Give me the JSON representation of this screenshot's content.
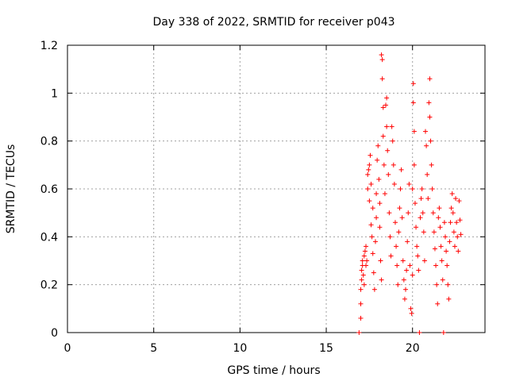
{
  "chart_data": {
    "type": "scatter",
    "title": "Day 338 of 2022, SRMTID for receiver p043",
    "xlabel": "GPS time / hours",
    "ylabel": "SRMTID / TECUs",
    "xlim": [
      0,
      24.2
    ],
    "ylim": [
      0,
      1.2
    ],
    "xticks": [
      0,
      5,
      10,
      15,
      20
    ],
    "yticks": [
      0,
      0.2,
      0.4,
      0.6,
      0.8,
      1,
      1.2
    ],
    "xtick_labels": [
      "0",
      "5",
      "10",
      "15",
      "20"
    ],
    "ytick_labels": [
      "0",
      "0.2",
      "0.4",
      "0.6",
      "0.8",
      "1",
      "1.2"
    ],
    "grid": true,
    "marker": "+",
    "series": [
      {
        "name": "SRMTID",
        "color": "#ff0000",
        "x_range": [
          16.9,
          22.8
        ],
        "points": [
          [
            16.9,
            0.0
          ],
          [
            17.0,
            0.06
          ],
          [
            17.0,
            0.12
          ],
          [
            17.0,
            0.18
          ],
          [
            17.05,
            0.22
          ],
          [
            17.05,
            0.26
          ],
          [
            17.1,
            0.28
          ],
          [
            17.1,
            0.3
          ],
          [
            17.15,
            0.24
          ],
          [
            17.2,
            0.32
          ],
          [
            17.2,
            0.2
          ],
          [
            17.25,
            0.34
          ],
          [
            17.3,
            0.28
          ],
          [
            17.3,
            0.36
          ],
          [
            17.35,
            0.3
          ],
          [
            17.4,
            0.6
          ],
          [
            17.4,
            0.66
          ],
          [
            17.45,
            0.68
          ],
          [
            17.5,
            0.7
          ],
          [
            17.5,
            0.55
          ],
          [
            17.55,
            0.74
          ],
          [
            17.6,
            0.62
          ],
          [
            17.6,
            0.45
          ],
          [
            17.65,
            0.4
          ],
          [
            17.7,
            0.52
          ],
          [
            17.7,
            0.33
          ],
          [
            17.75,
            0.25
          ],
          [
            17.8,
            0.18
          ],
          [
            17.85,
            0.38
          ],
          [
            17.9,
            0.48
          ],
          [
            17.9,
            0.58
          ],
          [
            17.95,
            0.72
          ],
          [
            18.0,
            0.78
          ],
          [
            18.05,
            0.64
          ],
          [
            18.1,
            0.54
          ],
          [
            18.1,
            0.44
          ],
          [
            18.15,
            0.3
          ],
          [
            18.2,
            0.22
          ],
          [
            18.2,
            1.16
          ],
          [
            18.25,
            1.14
          ],
          [
            18.25,
            1.06
          ],
          [
            18.3,
            0.94
          ],
          [
            18.3,
            0.82
          ],
          [
            18.35,
            0.7
          ],
          [
            18.4,
            0.58
          ],
          [
            18.45,
            0.95
          ],
          [
            18.5,
            0.98
          ],
          [
            18.5,
            0.86
          ],
          [
            18.55,
            0.76
          ],
          [
            18.6,
            0.66
          ],
          [
            18.65,
            0.5
          ],
          [
            18.7,
            0.4
          ],
          [
            18.75,
            0.32
          ],
          [
            18.8,
            0.86
          ],
          [
            18.85,
            0.8
          ],
          [
            18.9,
            0.7
          ],
          [
            18.95,
            0.62
          ],
          [
            19.0,
            0.46
          ],
          [
            19.05,
            0.36
          ],
          [
            19.1,
            0.28
          ],
          [
            19.15,
            0.2
          ],
          [
            19.2,
            0.42
          ],
          [
            19.25,
            0.52
          ],
          [
            19.3,
            0.6
          ],
          [
            19.35,
            0.68
          ],
          [
            19.4,
            0.48
          ],
          [
            19.45,
            0.3
          ],
          [
            19.5,
            0.22
          ],
          [
            19.55,
            0.14
          ],
          [
            19.6,
            0.18
          ],
          [
            19.65,
            0.26
          ],
          [
            19.7,
            0.38
          ],
          [
            19.75,
            0.5
          ],
          [
            19.8,
            0.62
          ],
          [
            19.85,
            0.28
          ],
          [
            19.9,
            0.1
          ],
          [
            19.95,
            0.08
          ],
          [
            20.0,
            0.24
          ],
          [
            20.0,
            0.6
          ],
          [
            20.05,
            0.96
          ],
          [
            20.05,
            1.04
          ],
          [
            20.1,
            0.84
          ],
          [
            20.1,
            0.7
          ],
          [
            20.15,
            0.54
          ],
          [
            20.2,
            0.44
          ],
          [
            20.25,
            0.36
          ],
          [
            20.3,
            0.32
          ],
          [
            20.35,
            0.26
          ],
          [
            20.4,
            0.0
          ],
          [
            20.45,
            0.48
          ],
          [
            20.5,
            0.56
          ],
          [
            20.55,
            0.6
          ],
          [
            20.6,
            0.5
          ],
          [
            20.65,
            0.42
          ],
          [
            20.7,
            0.3
          ],
          [
            20.75,
            0.84
          ],
          [
            20.8,
            0.78
          ],
          [
            20.85,
            0.66
          ],
          [
            20.9,
            0.56
          ],
          [
            20.95,
            0.96
          ],
          [
            21.0,
            1.06
          ],
          [
            21.0,
            0.9
          ],
          [
            21.05,
            0.8
          ],
          [
            21.1,
            0.7
          ],
          [
            21.15,
            0.6
          ],
          [
            21.2,
            0.5
          ],
          [
            21.25,
            0.42
          ],
          [
            21.3,
            0.35
          ],
          [
            21.35,
            0.28
          ],
          [
            21.4,
            0.2
          ],
          [
            21.45,
            0.12
          ],
          [
            21.5,
            0.48
          ],
          [
            21.55,
            0.52
          ],
          [
            21.6,
            0.44
          ],
          [
            21.65,
            0.36
          ],
          [
            21.7,
            0.3
          ],
          [
            21.75,
            0.22
          ],
          [
            21.8,
            0.0
          ],
          [
            21.85,
            0.46
          ],
          [
            21.9,
            0.4
          ],
          [
            21.95,
            0.34
          ],
          [
            22.0,
            0.28
          ],
          [
            22.05,
            0.2
          ],
          [
            22.1,
            0.14
          ],
          [
            22.15,
            0.38
          ],
          [
            22.2,
            0.46
          ],
          [
            22.25,
            0.52
          ],
          [
            22.3,
            0.58
          ],
          [
            22.35,
            0.5
          ],
          [
            22.4,
            0.42
          ],
          [
            22.45,
            0.36
          ],
          [
            22.5,
            0.56
          ],
          [
            22.55,
            0.46
          ],
          [
            22.6,
            0.4
          ],
          [
            22.65,
            0.34
          ],
          [
            22.7,
            0.55
          ],
          [
            22.75,
            0.47
          ],
          [
            22.8,
            0.41
          ]
        ]
      }
    ]
  }
}
